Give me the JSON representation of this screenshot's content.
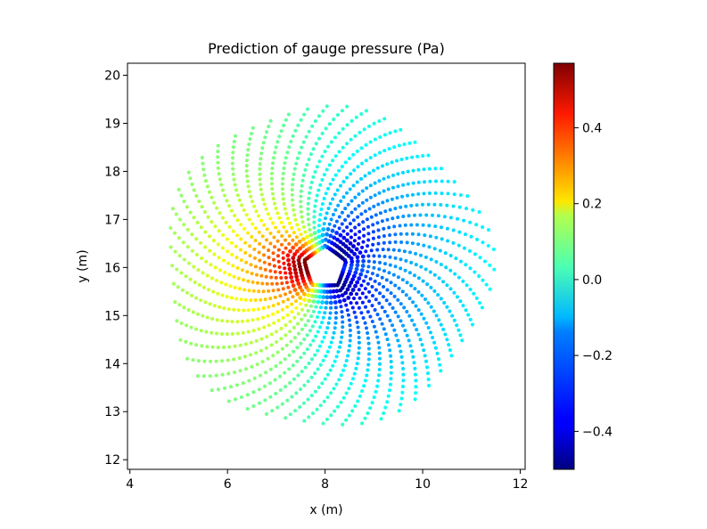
{
  "chart_data": {
    "type": "scatter",
    "title": "Prediction of gauge pressure (Pa)",
    "xlabel": "x (m)",
    "ylabel": "y (m)",
    "xlim": [
      3.95,
      12.1
    ],
    "ylim": [
      11.8,
      20.25
    ],
    "xticks": [
      4,
      6,
      8,
      10,
      12
    ],
    "yticks": [
      12,
      13,
      14,
      15,
      16,
      17,
      18,
      19,
      20
    ],
    "colormap": "jet",
    "colorbar": {
      "range": [
        -0.5,
        0.57
      ],
      "ticks": [
        -0.4,
        -0.2,
        0.0,
        0.2,
        0.4
      ],
      "tick_labels": [
        "−0.4",
        "−0.2",
        "0.0",
        "0.2",
        "0.4"
      ],
      "placement": "right"
    },
    "grid": false,
    "field": {
      "description_units": "Pa",
      "center": [
        8.0,
        16.0
      ],
      "obstacle": "pentagon",
      "obstacle_radius": 0.4,
      "domain_radius": 3.3,
      "points_per_ring": 52,
      "rings": 30,
      "max_pressure": 0.57,
      "min_pressure": -0.5
    }
  }
}
